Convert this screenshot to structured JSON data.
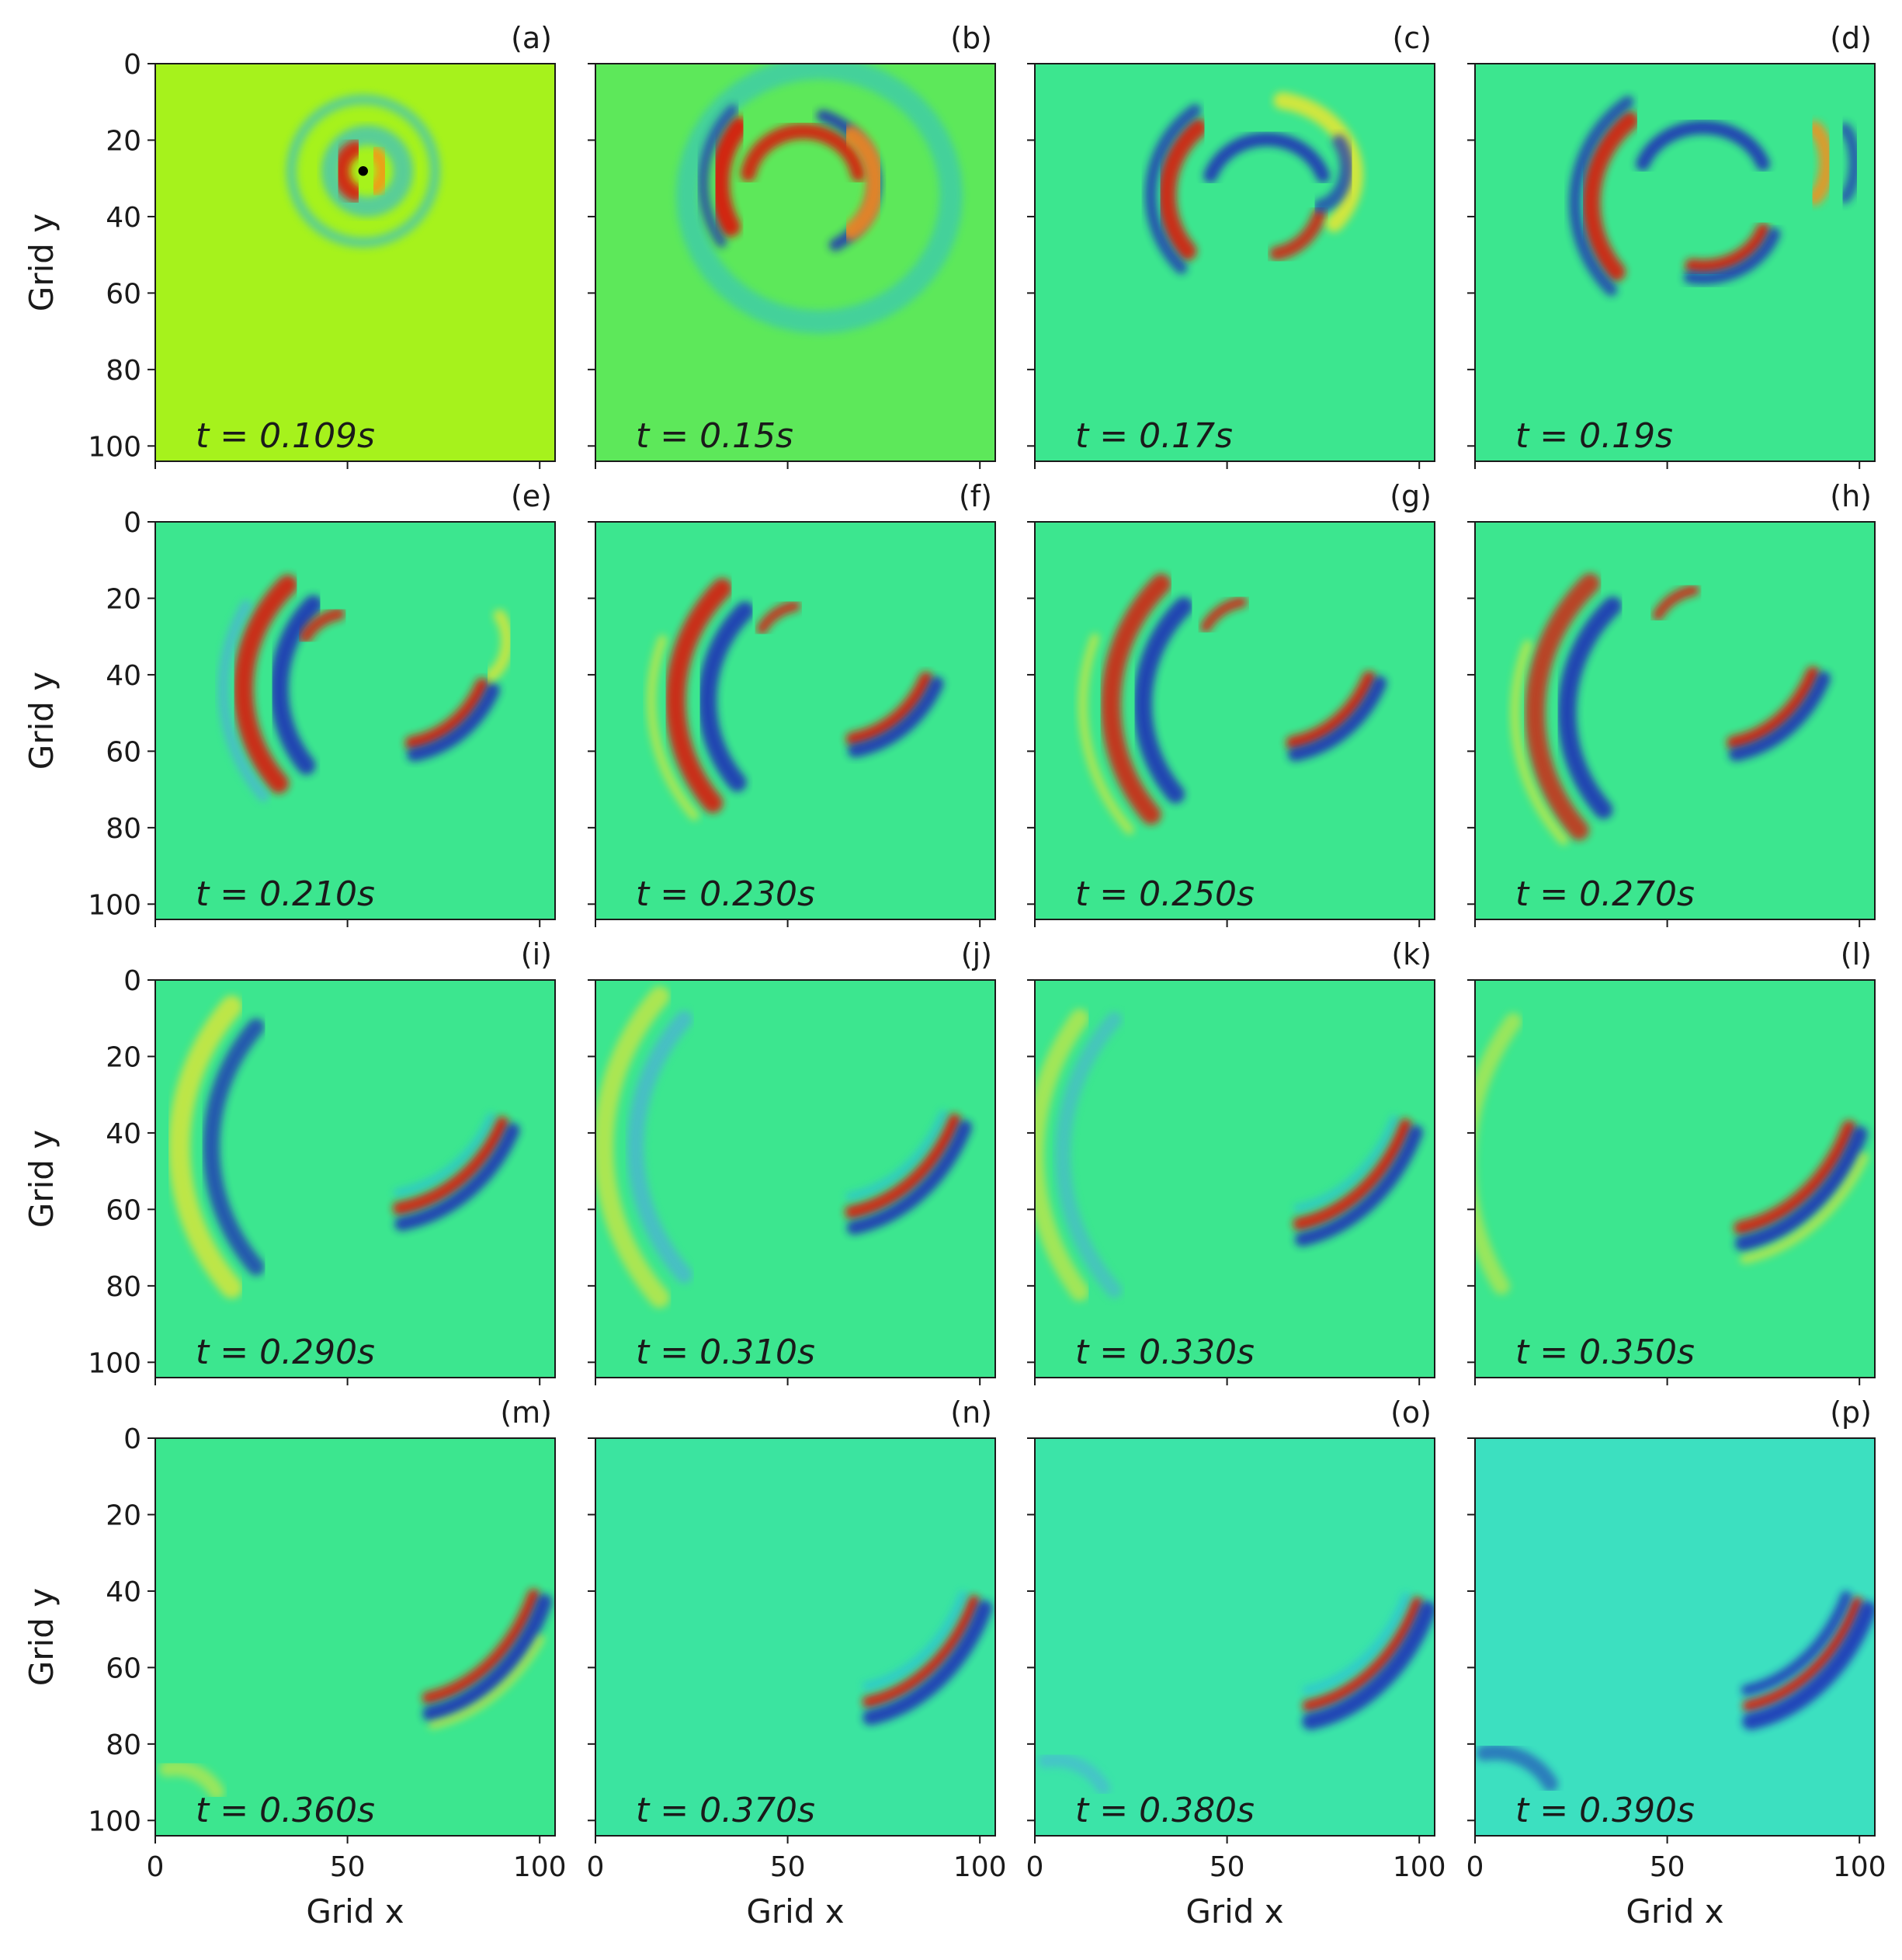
{
  "chart_data": {
    "type": "heatmap",
    "title": "",
    "xlabel": "Grid x",
    "ylabel": "Grid y",
    "xlim": [
      0,
      104
    ],
    "ylim": [
      0,
      104
    ],
    "x_ticks": [
      0,
      50,
      100
    ],
    "y_ticks": [
      0,
      20,
      40,
      60,
      80,
      100
    ],
    "colormap": "jet",
    "grid": false,
    "layout": "4x4 grid of panels, shared x label on bottom row, shared y label on left column",
    "panels": [
      {
        "label": "(a)",
        "time": "t = 0.109s",
        "background": "#a6f21c"
      },
      {
        "label": "(b)",
        "time": "t = 0.15s",
        "background": "#5de85a"
      },
      {
        "label": "(c)",
        "time": "t = 0.17s",
        "background": "#3ce68f"
      },
      {
        "label": "(d)",
        "time": "t = 0.19s",
        "background": "#3ce68f"
      },
      {
        "label": "(e)",
        "time": "t = 0.210s",
        "background": "#3ce68f"
      },
      {
        "label": "(f)",
        "time": "t = 0.230s",
        "background": "#3ce68f"
      },
      {
        "label": "(g)",
        "time": "t = 0.250s",
        "background": "#3ce68f"
      },
      {
        "label": "(h)",
        "time": "t = 0.270s",
        "background": "#3ce68f"
      },
      {
        "label": "(i)",
        "time": "t = 0.290s",
        "background": "#3ce68f"
      },
      {
        "label": "(j)",
        "time": "t = 0.310s",
        "background": "#3ce68f"
      },
      {
        "label": "(k)",
        "time": "t = 0.330s",
        "background": "#3ce68f"
      },
      {
        "label": "(l)",
        "time": "t = 0.350s",
        "background": "#3ce68f"
      },
      {
        "label": "(m)",
        "time": "t = 0.360s",
        "background": "#3ce68f"
      },
      {
        "label": "(n)",
        "time": "t = 0.370s",
        "background": "#3be4a0"
      },
      {
        "label": "(o)",
        "time": "t = 0.380s",
        "background": "#3be4a8"
      },
      {
        "label": "(p)",
        "time": "t = 0.390s",
        "background": "#3ce0c0"
      }
    ]
  }
}
